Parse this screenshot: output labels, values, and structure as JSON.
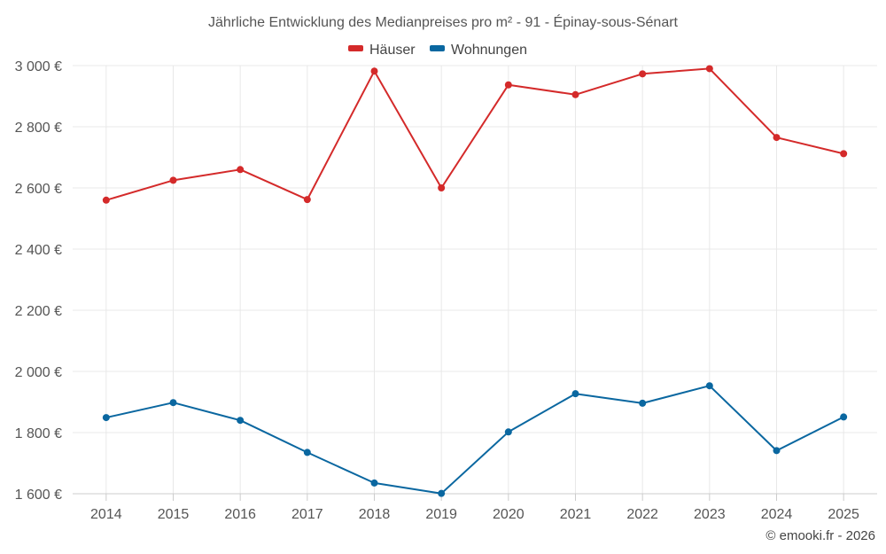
{
  "chart_data": {
    "type": "line",
    "title": "Jährliche Entwicklung des Medianpreises pro m² - 91 - Épinay-sous-Sénart",
    "categories": [
      "2014",
      "2015",
      "2016",
      "2017",
      "2018",
      "2019",
      "2020",
      "2021",
      "2022",
      "2023",
      "2024",
      "2025"
    ],
    "series": [
      {
        "name": "Häuser",
        "color": "#d42a2a",
        "values": [
          2560,
          2625,
          2660,
          2562,
          2982,
          2600,
          2937,
          2905,
          2973,
          2990,
          2765,
          2712
        ]
      },
      {
        "name": "Wohnungen",
        "color": "#0a67a0",
        "values": [
          1849,
          1898,
          1840,
          1735,
          1635,
          1601,
          1802,
          1927,
          1896,
          1953,
          1741,
          1851
        ]
      }
    ],
    "ylim": [
      1600,
      3000
    ],
    "yticks": [
      1600,
      1800,
      2000,
      2200,
      2400,
      2600,
      2800,
      3000
    ],
    "ytick_labels": [
      "1 600 €",
      "1 800 €",
      "2 000 €",
      "2 200 €",
      "2 400 €",
      "2 600 €",
      "2 800 €",
      "3 000 €"
    ],
    "xlabel": "",
    "ylabel": "",
    "legend_position": "top-center",
    "grid": true
  },
  "credit": "© emooki.fr - 2026"
}
